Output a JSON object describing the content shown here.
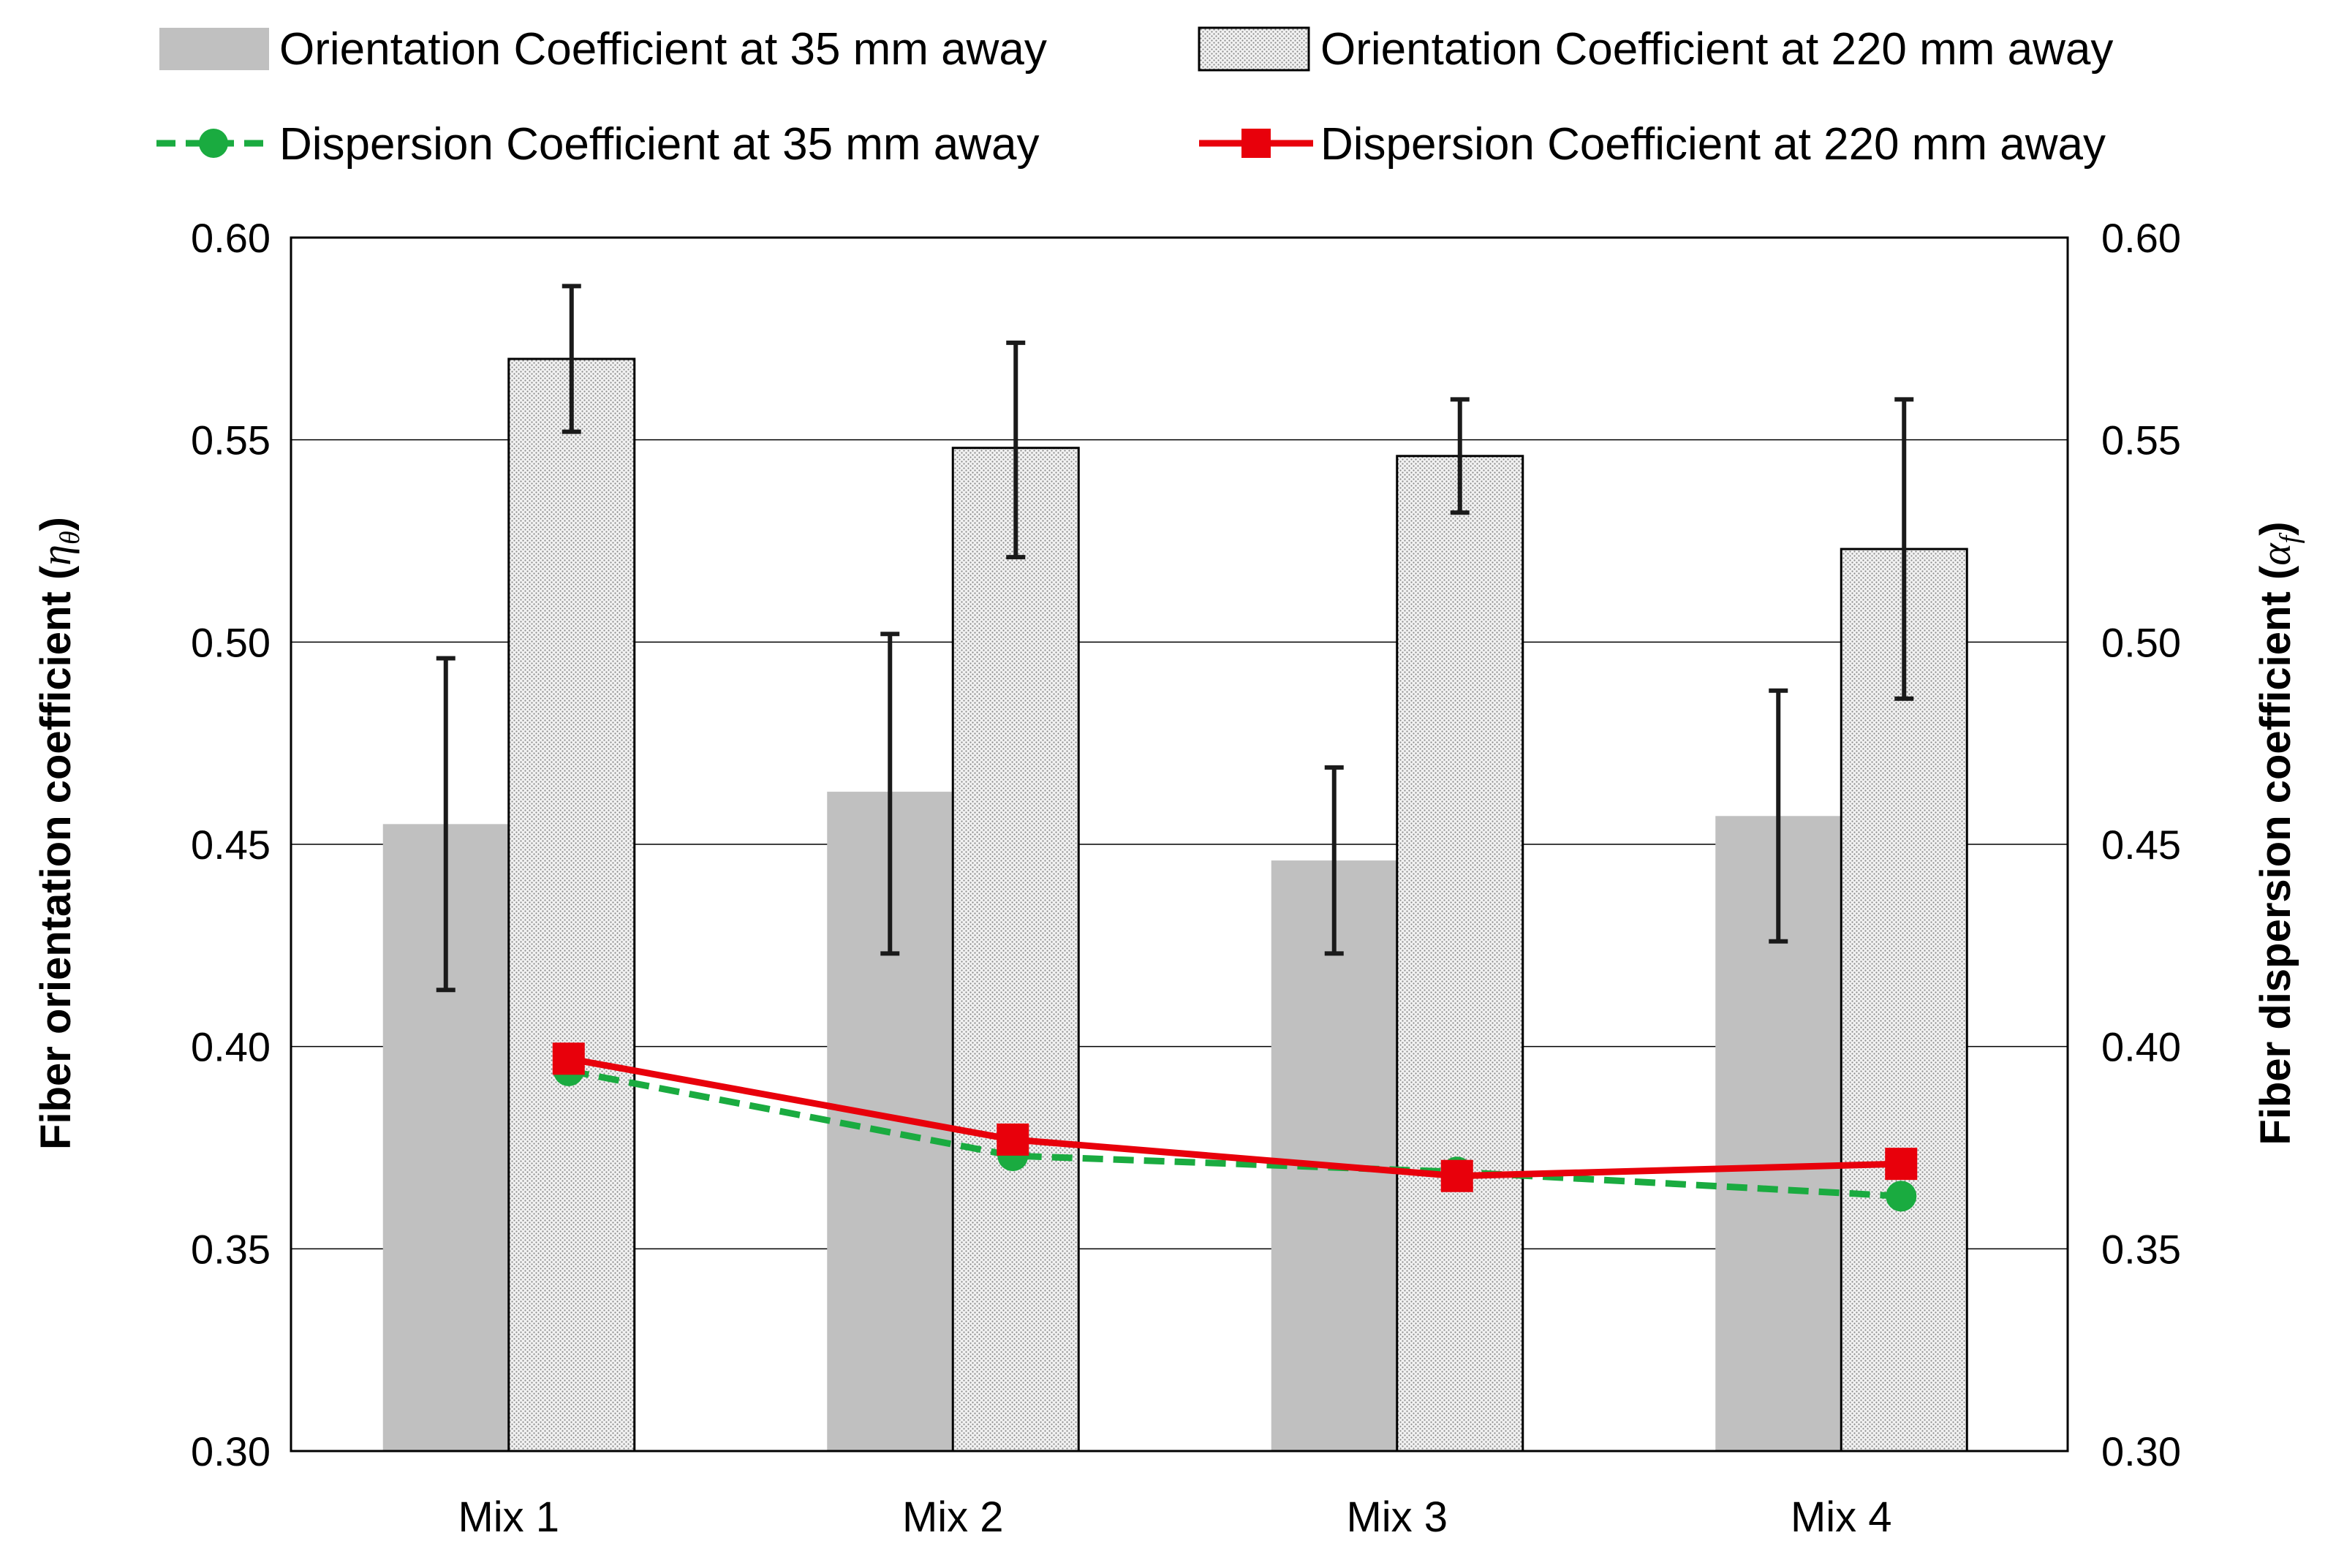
{
  "chart_data": {
    "type": "bar",
    "categories": [
      "Mix 1",
      "Mix 2",
      "Mix 3",
      "Mix 4"
    ],
    "ylim": [
      0.3,
      0.6
    ],
    "y2lim": [
      0.3,
      0.6
    ],
    "yticks": [
      "0.30",
      "0.35",
      "0.40",
      "0.45",
      "0.50",
      "0.55",
      "0.60"
    ],
    "ylabel_text": "Fiber orientation coefficient (",
    "ylabel_symbol": "η",
    "ylabel_subscript": "θ",
    "ylabel_close": ")",
    "y2label_text": "Fiber dispersion coefficient (",
    "y2label_symbol": "α",
    "y2label_subscript": "f",
    "y2label_close": ")",
    "bar_series": [
      {
        "name": "Orientation Coefficient at 35 mm away",
        "values": [
          0.455,
          0.463,
          0.446,
          0.457
        ],
        "err_low": [
          0.414,
          0.423,
          0.423,
          0.426
        ],
        "err_high": [
          0.496,
          0.502,
          0.469,
          0.488
        ],
        "color": "#c0c0c0",
        "pattern": "solid"
      },
      {
        "name": "Orientation Coefficient at 220 mm away",
        "values": [
          0.57,
          0.548,
          0.546,
          0.523
        ],
        "err_low": [
          0.552,
          0.521,
          0.532,
          0.486
        ],
        "err_high": [
          0.588,
          0.574,
          0.56,
          0.56
        ],
        "color": "#e8e8e8",
        "pattern": "dotted"
      }
    ],
    "line_series": [
      {
        "name": "Dispersion Coefficient at 35 mm away",
        "values": [
          0.394,
          0.373,
          0.369,
          0.363
        ],
        "color": "#1aab40",
        "marker": "circle",
        "dashed": true
      },
      {
        "name": "Dispersion Coefficient at 220 mm away",
        "values": [
          0.397,
          0.377,
          0.368,
          0.371
        ],
        "color": "#e8000b",
        "marker": "square",
        "dashed": false
      }
    ],
    "legend_position": "top",
    "grid": true
  }
}
